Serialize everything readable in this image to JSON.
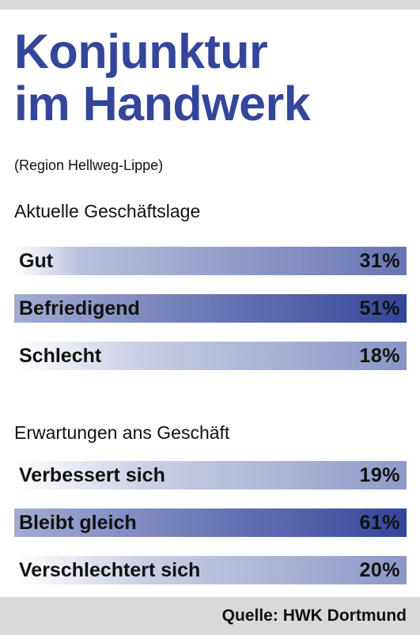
{
  "title_line1": "Konjunktur",
  "title_line2": "im Handwerk",
  "subtitle": "(Region Hellweg-Lippe)",
  "source": "Quelle: HWK Dortmund",
  "colors": {
    "title": "#33469a",
    "bar_dark": "#33469a",
    "bar_light": "#ffffff",
    "background": "#d9d9d9"
  },
  "chart_data": [
    {
      "type": "bar",
      "title": "Aktuelle Geschäftslage",
      "categories": [
        "Gut",
        "Befriedigend",
        "Schlecht"
      ],
      "values": [
        31,
        51,
        18
      ],
      "labels": [
        "31%",
        "51%",
        "18%"
      ],
      "unit": "%"
    },
    {
      "type": "bar",
      "title": "Erwartungen ans Geschäft",
      "categories": [
        "Verbessert sich",
        "Bleibt gleich",
        "Verschlechtert sich"
      ],
      "values": [
        19,
        61,
        20
      ],
      "labels": [
        "19%",
        "61%",
        "20%"
      ],
      "unit": "%"
    }
  ]
}
